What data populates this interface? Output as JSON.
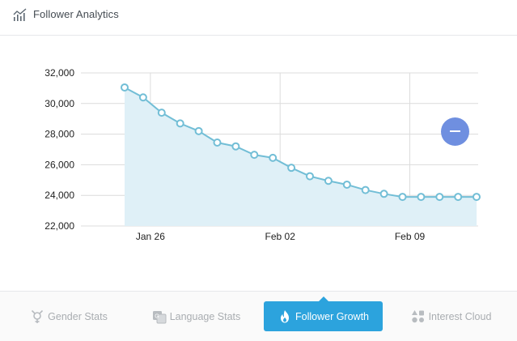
{
  "header": {
    "title": "Follower Analytics",
    "icon": "analytics-chart-icon"
  },
  "chart_data": {
    "type": "area",
    "title": "",
    "xlabel": "",
    "ylabel": "",
    "x_ticks": [
      "Jan 26",
      "Feb 02",
      "Feb 09"
    ],
    "y_ticks": [
      "22,000",
      "24,000",
      "26,000",
      "28,000",
      "30,000",
      "32,000"
    ],
    "ylim": [
      22000,
      32000
    ],
    "grid": true,
    "x": [
      "2020-01-25",
      "2020-01-26",
      "2020-01-27",
      "2020-01-28",
      "2020-01-29",
      "2020-01-30",
      "2020-01-31",
      "2020-02-01",
      "2020-02-02",
      "2020-02-03",
      "2020-02-04",
      "2020-02-05",
      "2020-02-06",
      "2020-02-07",
      "2020-02-08",
      "2020-02-09",
      "2020-02-10",
      "2020-02-11",
      "2020-02-12",
      "2020-02-13"
    ],
    "values": [
      31050,
      30400,
      29400,
      28700,
      28200,
      27450,
      27200,
      26650,
      26450,
      25800,
      25250,
      24950,
      24700,
      24350,
      24100,
      23900,
      23900,
      23900,
      23900,
      23900
    ],
    "colors": {
      "line": "#72bed6",
      "fill": "#dff0f7",
      "marker_fill": "#ffffff",
      "grid": "#dcdcdc"
    }
  },
  "fab": {
    "icon": "minus-icon",
    "color": "#6f8fe0"
  },
  "tabs": [
    {
      "label": "Gender Stats",
      "icon": "gender-icon",
      "active": false
    },
    {
      "label": "Language Stats",
      "icon": "language-icon",
      "active": false
    },
    {
      "label": "Follower Growth",
      "icon": "fire-icon",
      "active": true
    },
    {
      "label": "Interest Cloud",
      "icon": "shapes-icon",
      "active": false
    }
  ],
  "colors": {
    "accent": "#2ca3dd"
  }
}
